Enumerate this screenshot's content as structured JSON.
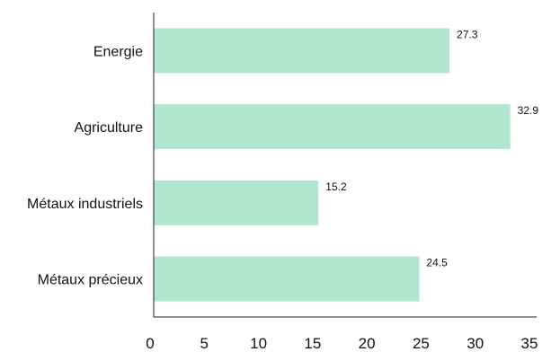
{
  "chart_data": {
    "type": "bar",
    "orientation": "horizontal",
    "categories": [
      "Energie",
      "Agriculture",
      "Métaux industriels",
      "Métaux précieux"
    ],
    "values": [
      27.3,
      32.9,
      15.2,
      24.5
    ],
    "value_labels": [
      "27.3",
      "32.9",
      "15.2",
      "24.5"
    ],
    "x_ticks": [
      0,
      5,
      10,
      15,
      20,
      25,
      30,
      35
    ],
    "x_tick_labels": [
      "0",
      "5",
      "10",
      "15",
      "20",
      "25",
      "30",
      "35"
    ],
    "xlim": [
      0,
      35
    ],
    "grid": false,
    "bar_color": "#b3e6cf",
    "title": "",
    "xlabel": "",
    "ylabel": ""
  }
}
